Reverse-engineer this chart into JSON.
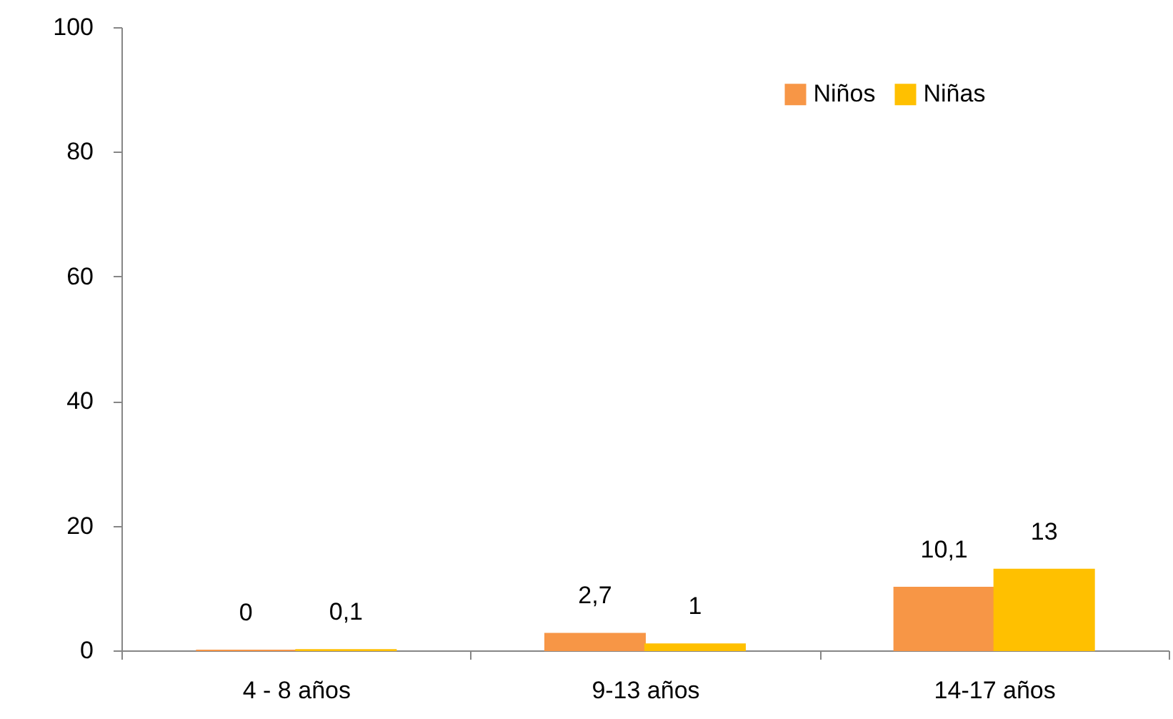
{
  "chart_data": {
    "type": "bar",
    "categories": [
      "4 - 8 años",
      "9-13 años",
      "14-17 años"
    ],
    "series": [
      {
        "name": "Niños",
        "color": "#f79646",
        "values": [
          0,
          2.7,
          10.1
        ],
        "value_labels": [
          "0",
          "2,7",
          "10,1"
        ]
      },
      {
        "name": "Niñas",
        "color": "#ffc000",
        "values": [
          0.1,
          1,
          13
        ],
        "value_labels": [
          "0,1",
          "1",
          "13"
        ]
      }
    ],
    "ylim": [
      0,
      100
    ],
    "yticks": [
      0,
      20,
      40,
      60,
      80,
      100
    ],
    "grid": false,
    "legend": "top right"
  }
}
